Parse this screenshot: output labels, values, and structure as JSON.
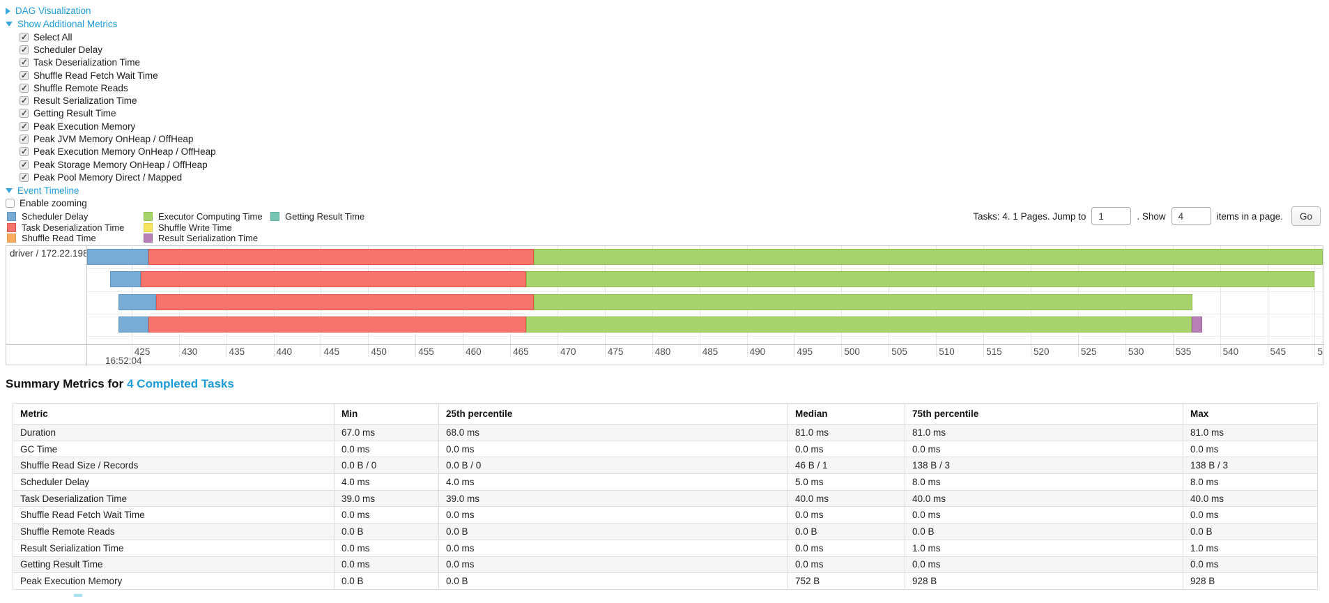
{
  "controls": {
    "dag": {
      "label": "DAG Visualization",
      "collapsed": true
    },
    "metrics": {
      "label": "Show Additional Metrics",
      "items": [
        {
          "label": "Select All",
          "checked": true
        },
        {
          "label": "Scheduler Delay",
          "checked": true
        },
        {
          "label": "Task Deserialization Time",
          "checked": true
        },
        {
          "label": "Shuffle Read Fetch Wait Time",
          "checked": true
        },
        {
          "label": "Shuffle Remote Reads",
          "checked": true
        },
        {
          "label": "Result Serialization Time",
          "checked": true
        },
        {
          "label": "Getting Result Time",
          "checked": true
        },
        {
          "label": "Peak Execution Memory",
          "checked": true
        },
        {
          "label": "Peak JVM Memory OnHeap / OffHeap",
          "checked": true
        },
        {
          "label": "Peak Execution Memory OnHeap / OffHeap",
          "checked": true
        },
        {
          "label": "Peak Storage Memory OnHeap / OffHeap",
          "checked": true
        },
        {
          "label": "Peak Pool Memory Direct / Mapped",
          "checked": true
        }
      ]
    },
    "event_timeline": {
      "label": "Event Timeline"
    },
    "enable_zooming": {
      "label": "Enable zooming",
      "checked": false
    }
  },
  "pagination": {
    "prefix": "Tasks: 4. 1 Pages. Jump to",
    "jump_value": "1",
    "mid": ". Show",
    "show_value": "4",
    "suffix": "items in a page.",
    "go_label": "Go"
  },
  "chart_data": {
    "type": "timeline",
    "group_label": "driver / 172.22.198.104",
    "axis": {
      "min": 420.3,
      "max": 550.85,
      "tick_start": 425,
      "tick_end": 550,
      "tick_step": 5,
      "unit": "ms within second",
      "major_label": "16:52:04"
    },
    "categories": {
      "scheduler": {
        "label": "Scheduler Delay",
        "color": "#79ACD4",
        "border": "#5E96C5"
      },
      "deserialization": {
        "label": "Task Deserialization Time",
        "color": "#F5756C",
        "border": "#E2584F"
      },
      "shuffle_read": {
        "label": "Shuffle Read Time",
        "color": "#FBAC5F",
        "border": "#E89A4B"
      },
      "executor": {
        "label": "Executor Computing Time",
        "color": "#A9D36C",
        "border": "#8FBE4F"
      },
      "shuffle_write": {
        "label": "Shuffle Write Time",
        "color": "#F5E55E",
        "border": "#E0D049"
      },
      "result_serialization": {
        "label": "Result Serialization Time",
        "color": "#B67FB6",
        "border": "#A167A1"
      },
      "getting_result": {
        "label": "Getting Result Time",
        "color": "#76C5B2",
        "border": "#5FB09C"
      }
    },
    "legend_columns": [
      [
        "scheduler",
        "deserialization",
        "shuffle_read"
      ],
      [
        "executor",
        "shuffle_write",
        "result_serialization"
      ],
      [
        "getting_result"
      ]
    ],
    "tasks": [
      {
        "segments": [
          {
            "type": "scheduler",
            "start": 418.8,
            "end": 426.8
          },
          {
            "type": "deserialization",
            "start": 426.8,
            "end": 467.5
          },
          {
            "type": "executor",
            "start": 467.5,
            "end": 550.85
          }
        ]
      },
      {
        "segments": [
          {
            "type": "scheduler",
            "start": 422.7,
            "end": 426.0
          },
          {
            "type": "deserialization",
            "start": 426.0,
            "end": 466.7
          },
          {
            "type": "executor",
            "start": 466.7,
            "end": 550.0
          }
        ]
      },
      {
        "segments": [
          {
            "type": "scheduler",
            "start": 423.6,
            "end": 427.6
          },
          {
            "type": "deserialization",
            "start": 427.6,
            "end": 467.5
          },
          {
            "type": "executor",
            "start": 467.5,
            "end": 537.1
          }
        ]
      },
      {
        "segments": [
          {
            "type": "scheduler",
            "start": 423.6,
            "end": 426.8
          },
          {
            "type": "deserialization",
            "start": 426.8,
            "end": 466.7
          },
          {
            "type": "executor",
            "start": 466.7,
            "end": 537.0
          },
          {
            "type": "result_serialization",
            "start": 537.0,
            "end": 538.1
          }
        ]
      }
    ]
  },
  "summary": {
    "title_prefix": "Summary Metrics for",
    "title_link": "4 Completed Tasks",
    "table": {
      "headers": [
        "Metric",
        "Min",
        "25th percentile",
        "Median",
        "75th percentile",
        "Max"
      ],
      "rows": [
        [
          "Duration",
          "67.0 ms",
          "68.0 ms",
          "81.0 ms",
          "81.0 ms",
          "81.0 ms"
        ],
        [
          "GC Time",
          "0.0 ms",
          "0.0 ms",
          "0.0 ms",
          "0.0 ms",
          "0.0 ms"
        ],
        [
          "Shuffle Read Size / Records",
          "0.0 B / 0",
          "0.0 B / 0",
          "46 B / 1",
          "138 B / 3",
          "138 B / 3"
        ],
        [
          "Scheduler Delay",
          "4.0 ms",
          "4.0 ms",
          "5.0 ms",
          "8.0 ms",
          "8.0 ms"
        ],
        [
          "Task Deserialization Time",
          "39.0 ms",
          "39.0 ms",
          "40.0 ms",
          "40.0 ms",
          "40.0 ms"
        ],
        [
          "Shuffle Read Fetch Wait Time",
          "0.0 ms",
          "0.0 ms",
          "0.0 ms",
          "0.0 ms",
          "0.0 ms"
        ],
        [
          "Shuffle Remote Reads",
          "0.0 B",
          "0.0 B",
          "0.0 B",
          "0.0 B",
          "0.0 B"
        ],
        [
          "Result Serialization Time",
          "0.0 ms",
          "0.0 ms",
          "0.0 ms",
          "1.0 ms",
          "1.0 ms"
        ],
        [
          "Getting Result Time",
          "0.0 ms",
          "0.0 ms",
          "0.0 ms",
          "0.0 ms",
          "0.0 ms"
        ],
        [
          "Peak Execution Memory",
          "0.0 B",
          "0.0 B",
          "752 B",
          "928 B",
          "928 B"
        ]
      ]
    }
  }
}
